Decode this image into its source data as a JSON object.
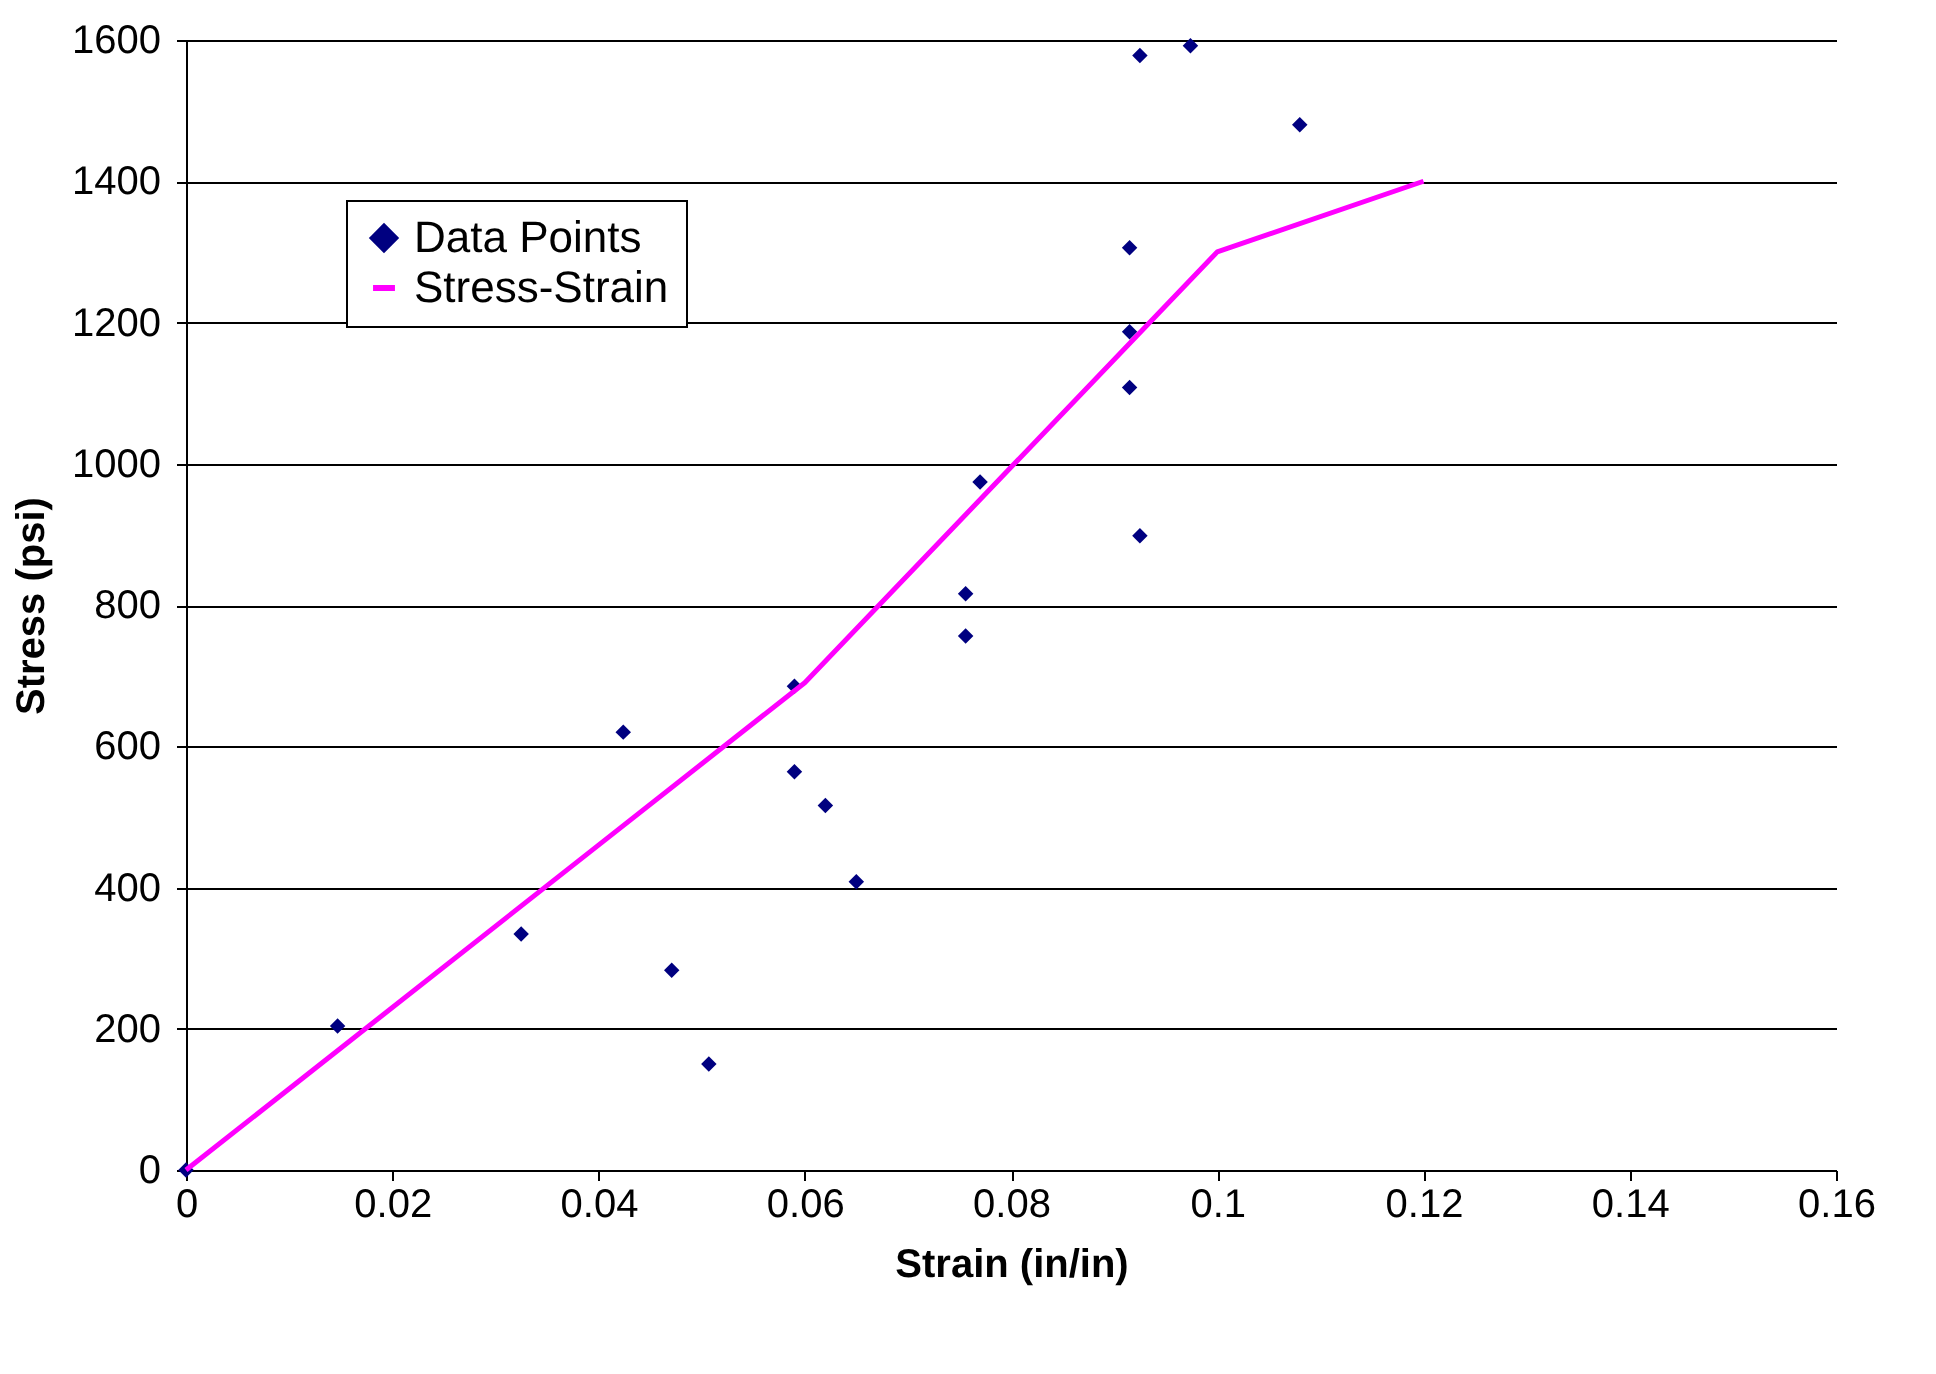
{
  "chart_data": {
    "type": "scatter",
    "xlabel": "Strain (in/in)",
    "ylabel": "Stress (psi)",
    "xlim": [
      0,
      0.16
    ],
    "xticks": [
      0,
      0.02,
      0.04,
      0.06,
      0.08,
      0.1,
      0.12,
      0.14,
      0.16
    ],
    "ylim": [
      0,
      1600
    ],
    "yticks": [
      0,
      200,
      400,
      600,
      800,
      1000,
      1200,
      1400,
      1600
    ],
    "grid": "y",
    "legend": "top left",
    "series": [
      {
        "name": "Data Points",
        "marker": "diamond",
        "color": "#000080",
        "x": [
          0,
          0.0147,
          0.0325,
          0.0424,
          0.0471,
          0.0507,
          0.059,
          0.059,
          0.062,
          0.065,
          0.0756,
          0.0756,
          0.077,
          0.0915,
          0.0915,
          0.0915,
          0.0925,
          0.0925,
          0.0974,
          0.108
        ],
        "values": [
          0,
          204,
          334,
          620,
          283,
          150,
          685,
          564,
          516,
          408,
          816,
          756,
          974,
          1306,
          1187,
          1108,
          898,
          1578,
          1592,
          1480
        ]
      },
      {
        "name": "Stress-Strain",
        "type": "line",
        "line_style": "solid",
        "color": "#ff00ff",
        "x": [
          0,
          0.04,
          0.06,
          0.1,
          0.12
        ],
        "values": [
          0,
          460,
          690,
          1300,
          1400
        ]
      }
    ]
  }
}
